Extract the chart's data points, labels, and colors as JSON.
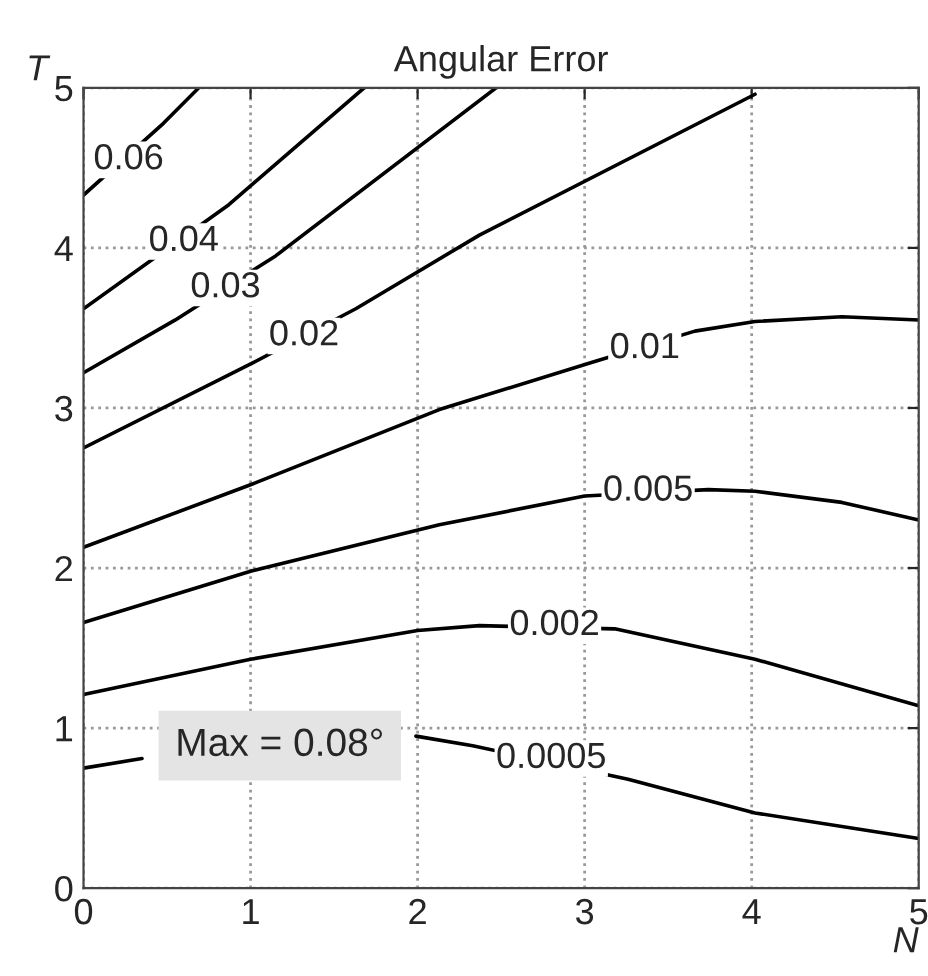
{
  "chart_data": {
    "type": "line",
    "title": "Angular Error",
    "xlabel": "N",
    "ylabel": "T",
    "xlim": [
      0,
      5
    ],
    "ylim": [
      0,
      5
    ],
    "xticks": [
      0,
      1,
      2,
      3,
      4,
      5
    ],
    "yticks": [
      0,
      1,
      2,
      3,
      4,
      5
    ],
    "grid": true,
    "marker": "none",
    "line_style": "solid",
    "series": [
      {
        "color": "#000000",
        "x": [
          0,
          0.48,
          0.69
        ],
        "values": [
          4.33,
          4.78,
          5
        ]
      },
      {
        "color": "#000000",
        "x": [
          0,
          0.87,
          1.68
        ],
        "values": [
          3.62,
          4.27,
          5
        ]
      },
      {
        "color": "#000000",
        "x": [
          0,
          0.55,
          1.15,
          2.47
        ],
        "values": [
          3.22,
          3.55,
          3.95,
          5
        ]
      },
      {
        "color": "#000000",
        "x": [
          0,
          1.01,
          1.63,
          2.37,
          4.02
        ],
        "values": [
          2.75,
          3.28,
          3.62,
          4.08,
          4.96
        ]
      },
      {
        "color": "#000000",
        "x": [
          0,
          1,
          2.13,
          3.06,
          3.66,
          4.02,
          4.54,
          5
        ],
        "values": [
          2.13,
          2.52,
          2.99,
          3.29,
          3.48,
          3.54,
          3.57,
          3.55
        ]
      },
      {
        "color": "#000000",
        "x": [
          0,
          1,
          2.13,
          3,
          3.74,
          4.02,
          4.54,
          5
        ],
        "values": [
          1.66,
          1.98,
          2.27,
          2.45,
          2.49,
          2.48,
          2.41,
          2.3
        ]
      },
      {
        "color": "#000000",
        "x": [
          0,
          1,
          2,
          2.37,
          3.18,
          4.02,
          5
        ],
        "values": [
          1.21,
          1.43,
          1.61,
          1.64,
          1.62,
          1.43,
          1.14
        ]
      },
      {
        "color": "#000000",
        "x": [
          0,
          0.35,
          1.2,
          1.99,
          2.33,
          3.26,
          4.02,
          5
        ],
        "values": [
          0.75,
          0.81,
          null,
          0.95,
          0.89,
          0.68,
          0.47,
          0.31
        ]
      }
    ],
    "annotations": [
      {
        "text": "0.06",
        "x": 0.27,
        "y": 4.55
      },
      {
        "text": "0.04",
        "x": 0.6,
        "y": 4.04
      },
      {
        "text": "0.03",
        "x": 0.85,
        "y": 3.75
      },
      {
        "text": "0.02",
        "x": 1.32,
        "y": 3.45
      },
      {
        "text": "0.01",
        "x": 3.36,
        "y": 3.37
      },
      {
        "text": "0.005",
        "x": 3.38,
        "y": 2.48
      },
      {
        "text": "0.002",
        "x": 2.82,
        "y": 1.64
      },
      {
        "text": "0.0005",
        "x": 2.8,
        "y": 0.81
      },
      "Max = 0.08°"
    ]
  }
}
